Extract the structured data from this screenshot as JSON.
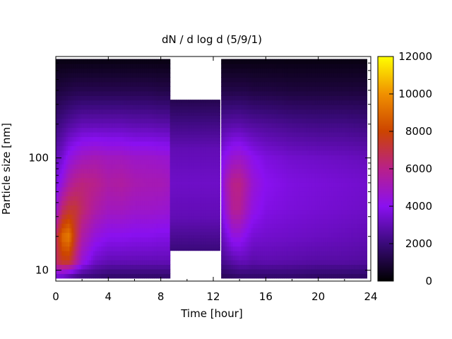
{
  "chart_data": {
    "type": "heatmap",
    "title": "dN / d log d (5/9/1)",
    "xlabel": "Time [hour]",
    "ylabel": "Particle size [nm]",
    "x_ticks": [
      0,
      4,
      8,
      12,
      16,
      20,
      24
    ],
    "x_tick_labels": [
      "0",
      "4",
      "8",
      "12",
      "16",
      "20",
      "24"
    ],
    "xlim": [
      0,
      24
    ],
    "y_scale": "log",
    "y_ticks": [
      10,
      100
    ],
    "y_tick_labels": [
      "10",
      "100"
    ],
    "ylim": [
      8,
      800
    ],
    "colorbar": {
      "range": [
        0,
        12000
      ],
      "ticks": [
        0,
        2000,
        4000,
        6000,
        8000,
        10000,
        12000
      ],
      "tick_labels": [
        "0",
        "2000",
        "4000",
        "6000",
        "8000",
        "10000",
        "12000"
      ],
      "palette": "black-purple-red-orange-yellow"
    },
    "segments": [
      {
        "name_desc": "early",
        "time_range": [
          0,
          8.7
        ],
        "size_range": [
          8.5,
          760
        ],
        "time_samples": [
          0.0,
          0.5,
          1.0,
          1.5,
          2.0,
          3.0,
          4.0,
          5.0,
          6.0,
          7.0,
          8.0,
          8.7
        ],
        "size_samples": [
          9,
          12,
          20,
          35,
          60,
          100,
          200,
          400,
          760
        ],
        "values": [
          [
            3500,
            6500,
            6500,
            4500,
            3500,
            3000,
            2000,
            1000,
            300
          ],
          [
            3500,
            7500,
            9000,
            6500,
            4500,
            3500,
            2300,
            1100,
            300
          ],
          [
            3000,
            7500,
            9500,
            7200,
            5500,
            4300,
            2600,
            1200,
            300
          ],
          [
            2500,
            6000,
            7200,
            7200,
            6000,
            4700,
            2800,
            1300,
            300
          ],
          [
            2200,
            4500,
            5500,
            6500,
            6200,
            5000,
            3000,
            1300,
            300
          ],
          [
            2000,
            3300,
            4400,
            5500,
            6000,
            5200,
            3000,
            1300,
            300
          ],
          [
            1800,
            3000,
            4000,
            5000,
            5500,
            5000,
            3000,
            1300,
            300
          ],
          [
            1800,
            3000,
            4000,
            5000,
            5600,
            5000,
            3000,
            1300,
            300
          ],
          [
            1800,
            3000,
            3900,
            4800,
            5300,
            4800,
            2900,
            1300,
            300
          ],
          [
            1800,
            3000,
            3900,
            4800,
            5200,
            4800,
            2900,
            1300,
            300
          ],
          [
            1800,
            3000,
            3800,
            4700,
            5200,
            4700,
            2800,
            1200,
            300
          ],
          [
            1800,
            3000,
            3800,
            4600,
            5000,
            4600,
            2800,
            1200,
            300
          ]
        ]
      },
      {
        "name_desc": "middle",
        "time_range": [
          8.7,
          12.5
        ],
        "size_range": [
          15,
          330
        ],
        "time_samples": [
          8.7,
          12.5
        ],
        "size_samples": [
          15,
          30,
          60,
          120,
          200,
          330
        ],
        "values": [
          [
            2000,
            3000,
            3300,
            3000,
            2200,
            1300
          ],
          [
            2000,
            3000,
            3300,
            3000,
            2200,
            1300
          ]
        ]
      },
      {
        "name_desc": "late",
        "time_range": [
          12.6,
          23.7
        ],
        "size_range": [
          8.5,
          760
        ],
        "time_samples": [
          12.6,
          13.0,
          13.5,
          14.0,
          14.5,
          15.0,
          16.0,
          18.0,
          20.0,
          22.0,
          23.7
        ],
        "size_samples": [
          9,
          12,
          20,
          35,
          60,
          100,
          200,
          400,
          760
        ],
        "values": [
          [
            1500,
            2300,
            3000,
            3600,
            4000,
            3800,
            2600,
            1200,
            300
          ],
          [
            1600,
            2500,
            3600,
            4800,
            5200,
            4300,
            2700,
            1200,
            300
          ],
          [
            1700,
            2800,
            4300,
            5800,
            6000,
            4700,
            2800,
            1200,
            300
          ],
          [
            1800,
            3000,
            4300,
            5800,
            6100,
            4800,
            2800,
            1200,
            300
          ],
          [
            1800,
            3000,
            3900,
            5000,
            5400,
            4500,
            2700,
            1200,
            300
          ],
          [
            1800,
            2800,
            3500,
            4300,
            4600,
            4100,
            2600,
            1100,
            300
          ],
          [
            1800,
            2900,
            3400,
            3800,
            4000,
            3700,
            2500,
            1100,
            300
          ],
          [
            1800,
            2800,
            3300,
            3600,
            3700,
            3400,
            2300,
            1000,
            300
          ],
          [
            1700,
            2700,
            3200,
            3500,
            3600,
            3300,
            2200,
            1000,
            300
          ],
          [
            1700,
            2700,
            3100,
            3400,
            3500,
            3200,
            2200,
            1000,
            300
          ],
          [
            1700,
            2600,
            3000,
            3300,
            3400,
            3100,
            2100,
            1000,
            300
          ]
        ]
      }
    ]
  }
}
